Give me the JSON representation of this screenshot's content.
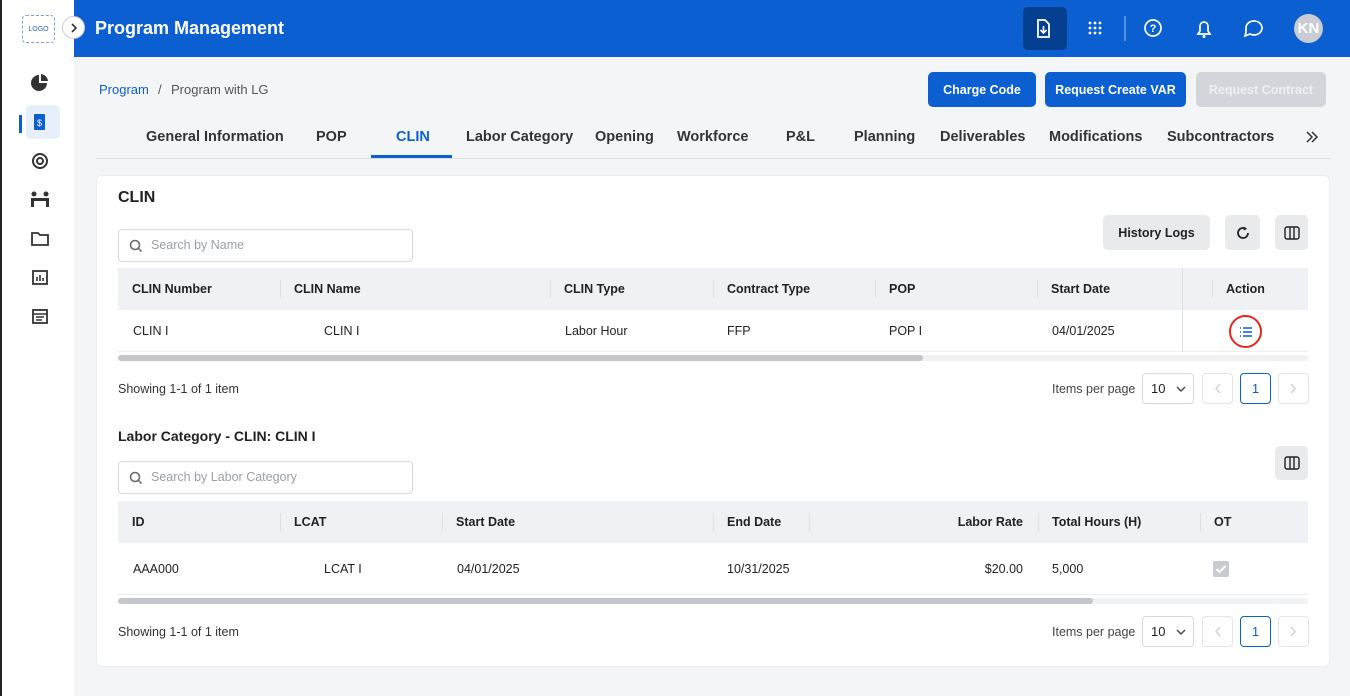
{
  "sidebar": {
    "logo": "LOGO"
  },
  "header": {
    "title": "Program Management",
    "avatar": "KN"
  },
  "breadcrumb": {
    "items": [
      "Program",
      "Program with LG"
    ],
    "separator": "/"
  },
  "actions": [
    "Charge Code",
    "Request Create VAR",
    "Request Contract"
  ],
  "tabs": {
    "items": [
      "General Information",
      "POP",
      "CLIN",
      "Labor Category",
      "Opening",
      "Workforce",
      "P&L",
      "Planning",
      "Deliverables",
      "Modifications",
      "Subcontractors"
    ],
    "active": "CLIN"
  },
  "clin_section": {
    "title": "CLIN",
    "search_placeholder": "Search by Name",
    "history_button": "History Logs",
    "table": {
      "columns": [
        "CLIN Number",
        "CLIN Name",
        "CLIN Type",
        "Contract Type",
        "POP",
        "Start Date",
        "Action"
      ],
      "rows": [
        [
          "CLIN I",
          "CLIN I",
          "Labor Hour",
          "FFP",
          "POP I",
          "04/01/2025"
        ]
      ]
    },
    "summary": "Showing 1-1 of 1 item",
    "items_per_page_label": "Items per page",
    "page_size": "10",
    "current_page": "1"
  },
  "labor_section": {
    "title": "Labor Category - CLIN: CLIN I",
    "search_placeholder": "Search by Labor Category",
    "table": {
      "columns": [
        "ID",
        "LCAT",
        "Start Date",
        "End Date",
        "Labor Rate",
        "Total Hours (H)",
        "OT"
      ],
      "rows": [
        [
          "AAA000",
          "LCAT I",
          "04/01/2025",
          "10/31/2025",
          "$20.00",
          "5,000"
        ]
      ]
    },
    "summary": "Showing 1-1 of 1 item",
    "items_per_page_label": "Items per page",
    "page_size": "10",
    "current_page": "1"
  }
}
